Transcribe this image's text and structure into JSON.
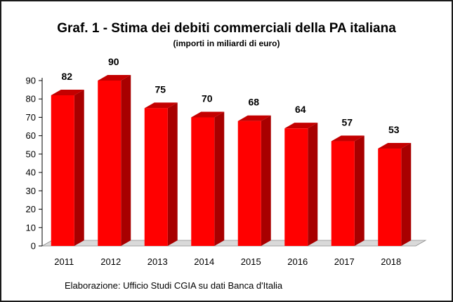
{
  "chart_data": {
    "type": "bar",
    "title": "Graf. 1 - Stima dei debiti commerciali della PA italiana",
    "subtitle": "(importi in miliardi di euro)",
    "categories": [
      "2011",
      "2012",
      "2013",
      "2014",
      "2015",
      "2016",
      "2017",
      "2018"
    ],
    "values": [
      82,
      90,
      75,
      70,
      68,
      64,
      57,
      53
    ],
    "ylim": [
      0,
      90
    ],
    "yticks": [
      0,
      10,
      20,
      30,
      40,
      50,
      60,
      70,
      80,
      90
    ],
    "xlabel": "",
    "ylabel": "",
    "grid": false,
    "legend": "none",
    "bar_color": "#ff0000",
    "bar_side_color": "#a80000",
    "bar_top_color": "#c40000",
    "floor_color": "#d9d9d9",
    "source_note": "Elaborazione: Ufficio Studi  CGIA su dati Banca d'Italia"
  }
}
